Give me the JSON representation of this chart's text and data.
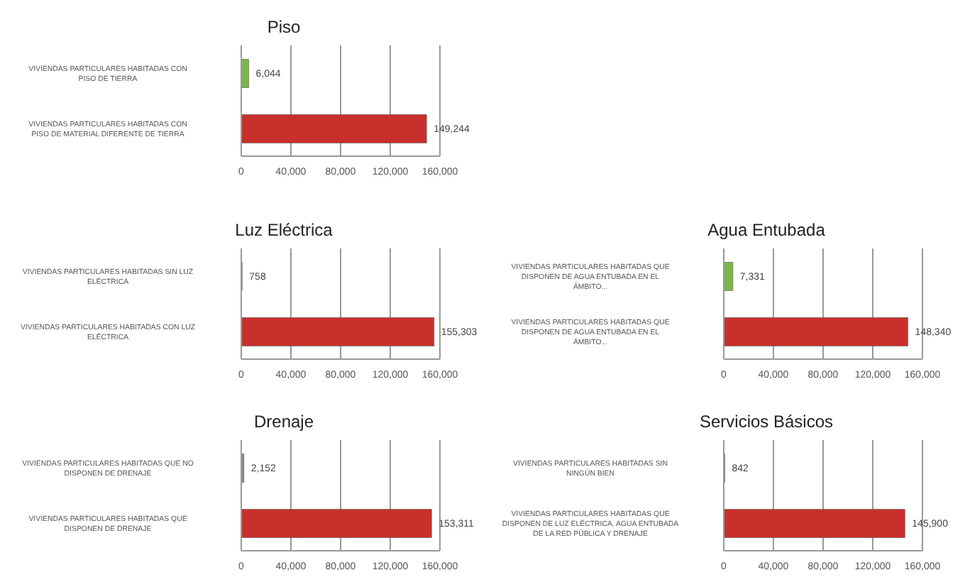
{
  "chart_data": [
    {
      "type": "bar",
      "orientation": "horizontal",
      "title": "Piso",
      "categories": [
        "VIVIENDAS PARTICULARES HABITADAS CON PISO  DE TIERRA",
        "VIVIENDAS PARTICULARES HABITADAS CON PISO DE MATERIAL DIFERENTE DE TIERRA"
      ],
      "values": [
        6044,
        149244
      ],
      "value_labels": [
        "6,044",
        "149,244"
      ],
      "colors": [
        "#7ab648",
        "#c8302c"
      ],
      "xlim": [
        0,
        160000
      ],
      "xticks": [
        {
          "value": 0,
          "label": "0"
        },
        {
          "value": 40000,
          "label": "40,000"
        },
        {
          "value": 80000,
          "label": "80,000"
        },
        {
          "value": 120000,
          "label": "120,000"
        },
        {
          "value": 160000,
          "label": "160,000"
        }
      ],
      "grid": "x"
    },
    {
      "type": "bar",
      "orientation": "horizontal",
      "title": "Luz Eléctrica",
      "categories": [
        "VIVIENDAS PARTICULARES HABITADAS SIN LUZ ELÉCTRICA",
        "VIVIENDAS PARTICULARES HABITADAS CON LUZ ELÉCTRICA"
      ],
      "values": [
        758,
        155303
      ],
      "value_labels": [
        "758",
        "155,303"
      ],
      "colors": [
        "#8a8a8a",
        "#c8302c"
      ],
      "xlim": [
        0,
        160000
      ],
      "xticks": [
        {
          "value": 0,
          "label": "0"
        },
        {
          "value": 40000,
          "label": "40,000"
        },
        {
          "value": 80000,
          "label": "80,000"
        },
        {
          "value": 120000,
          "label": "120,000"
        },
        {
          "value": 160000,
          "label": "160,000"
        }
      ],
      "grid": "x"
    },
    {
      "type": "bar",
      "orientation": "horizontal",
      "title": "Agua Entubada",
      "categories": [
        "VIVIENDAS PARTICULARES HABITADAS QUE DISPONEN DE AGUA ENTUBADA EN EL ÁMBITO...",
        "VIVIENDAS PARTICULARES HABITADAS QUE DISPONEN DE AGUA ENTUBADA EN EL ÁMBITO..."
      ],
      "values": [
        7331,
        148340
      ],
      "value_labels": [
        "7,331",
        "148,340"
      ],
      "colors": [
        "#7ab648",
        "#c8302c"
      ],
      "xlim": [
        0,
        160000
      ],
      "xticks": [
        {
          "value": 0,
          "label": "0"
        },
        {
          "value": 40000,
          "label": "40,000"
        },
        {
          "value": 80000,
          "label": "80,000"
        },
        {
          "value": 120000,
          "label": "120,000"
        },
        {
          "value": 160000,
          "label": "160,000"
        }
      ],
      "grid": "x"
    },
    {
      "type": "bar",
      "orientation": "horizontal",
      "title": "Drenaje",
      "categories": [
        "VIVIENDAS PARTICULARES HABITADAS QUE NO DISPONEN DE DRENAJE",
        "VIVIENDAS PARTICULARES HABITADAS QUE DISPONEN DE DRENAJE"
      ],
      "values": [
        2152,
        153311
      ],
      "value_labels": [
        "2,152",
        "153,311"
      ],
      "colors": [
        "#8a8a8a",
        "#c8302c"
      ],
      "xlim": [
        0,
        160000
      ],
      "xticks": [
        {
          "value": 0,
          "label": "0"
        },
        {
          "value": 40000,
          "label": "40,000"
        },
        {
          "value": 80000,
          "label": "80,000"
        },
        {
          "value": 120000,
          "label": "120,000"
        },
        {
          "value": 160000,
          "label": "160,000"
        }
      ],
      "grid": "x"
    },
    {
      "type": "bar",
      "orientation": "horizontal",
      "title": "Servicios Básicos",
      "categories": [
        "VIVIENDAS PARTICULARES HABITADAS SIN NINGÚN BIEN",
        "VIVIENDAS PARTICULARES HABITADAS QUE DISPONEN DE LUZ ELÉCTRICA, AGUA ENTUBADA DE LA RED PÚBLICA Y  DRENAJE"
      ],
      "values": [
        842,
        145900
      ],
      "value_labels": [
        "842",
        "145,900"
      ],
      "colors": [
        "#8a8a8a",
        "#c8302c"
      ],
      "xlim": [
        0,
        160000
      ],
      "xticks": [
        {
          "value": 0,
          "label": "0"
        },
        {
          "value": 40000,
          "label": "40,000"
        },
        {
          "value": 80000,
          "label": "80,000"
        },
        {
          "value": 120000,
          "label": "120,000"
        },
        {
          "value": 160000,
          "label": "160,000"
        }
      ],
      "grid": "x"
    }
  ]
}
